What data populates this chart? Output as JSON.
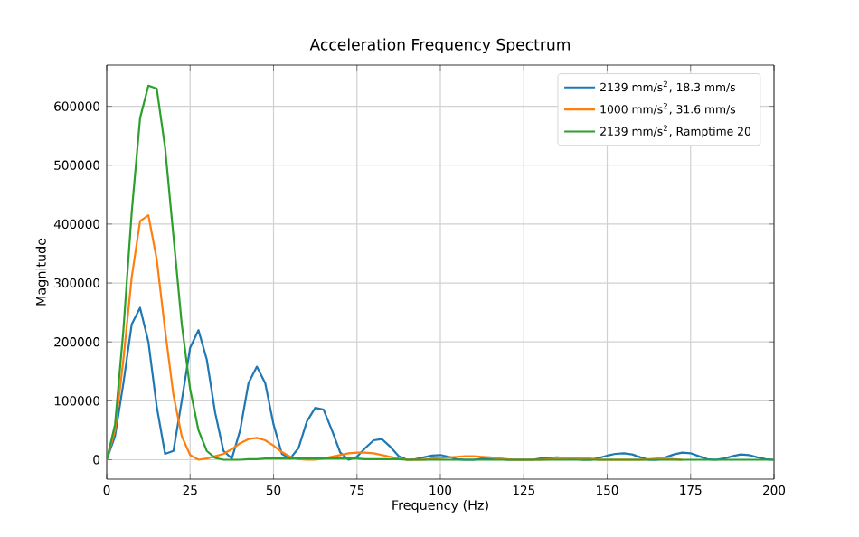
{
  "chart_data": {
    "type": "line",
    "title": "Acceleration Frequency Spectrum",
    "xlabel": "Frequency (Hz)",
    "ylabel": "Magnitude",
    "x": [
      0,
      2.5,
      5,
      7.5,
      10,
      12.5,
      15,
      17.5,
      20,
      22.5,
      25,
      27.5,
      30,
      32.5,
      35,
      37.5,
      40,
      42.5,
      45,
      47.5,
      50,
      52.5,
      55,
      57.5,
      60,
      62.5,
      65,
      67.5,
      70,
      72.5,
      75,
      77.5,
      80,
      82.5,
      85,
      87.5,
      90,
      92.5,
      95,
      97.5,
      100,
      102.5,
      105,
      107.5,
      110,
      112.5,
      115,
      117.5,
      120,
      122.5,
      125,
      127.5,
      130,
      132.5,
      135,
      137.5,
      140,
      142.5,
      145,
      147.5,
      150,
      152.5,
      155,
      157.5,
      160,
      162.5,
      165,
      167.5,
      170,
      172.5,
      175,
      177.5,
      180,
      182.5,
      185,
      187.5,
      190,
      192.5,
      195,
      197.5,
      200
    ],
    "series": [
      {
        "name": "2139 mm/s$^{2}$, 18.3 mm/s",
        "color": "#1f77b4",
        "values": [
          0,
          40000,
          130000,
          230000,
          258000,
          200000,
          90000,
          10000,
          15000,
          100000,
          190000,
          220000,
          170000,
          80000,
          15000,
          2000,
          50000,
          130000,
          158000,
          130000,
          60000,
          10000,
          2000,
          20000,
          65000,
          88000,
          85000,
          50000,
          12000,
          0,
          5000,
          20000,
          33000,
          35000,
          22000,
          6000,
          0,
          1000,
          4000,
          7000,
          8000,
          5000,
          1000,
          0,
          0,
          2000,
          2000,
          2000,
          0,
          0,
          0,
          0,
          2000,
          3000,
          4000,
          3000,
          2000,
          0,
          0,
          3000,
          7000,
          10000,
          11000,
          9000,
          4000,
          0,
          0,
          4000,
          9000,
          12000,
          11000,
          6000,
          1000,
          0,
          2000,
          6000,
          9000,
          8000,
          4000,
          1000,
          0
        ]
      },
      {
        "name": "1000 mm/s$^{2}$, 31.6 mm/s",
        "color": "#ff7f0e",
        "values": [
          0,
          50000,
          170000,
          310000,
          405000,
          415000,
          340000,
          220000,
          110000,
          40000,
          8000,
          0,
          2000,
          6000,
          10000,
          18000,
          28000,
          35000,
          37000,
          33000,
          24000,
          13000,
          5000,
          1000,
          0,
          0,
          2000,
          5000,
          8000,
          11000,
          12000,
          12000,
          11000,
          8000,
          5000,
          2000,
          0,
          0,
          0,
          2000,
          3000,
          4000,
          5000,
          6000,
          6000,
          5000,
          4000,
          2000,
          1000,
          0,
          0,
          0,
          0,
          1000,
          2000,
          3000,
          3000,
          2000,
          2000,
          0,
          0,
          0,
          0,
          0,
          0,
          1000,
          2000,
          2000,
          1000,
          0,
          null,
          null,
          null,
          null,
          null,
          null,
          null,
          null,
          null,
          null,
          null
        ]
      },
      {
        "name": "2139 mm/s$^{2}$, Ramptime 20",
        "color": "#2ca02c",
        "values": [
          0,
          60000,
          220000,
          420000,
          580000,
          635000,
          630000,
          530000,
          380000,
          230000,
          120000,
          50000,
          15000,
          3000,
          0,
          0,
          0,
          1000,
          1000,
          2000,
          2000,
          2000,
          2000,
          2000,
          2000,
          2000,
          2000,
          2000,
          2000,
          2000,
          2000,
          1000,
          1000,
          1000,
          1000,
          1000,
          0,
          0,
          0,
          0,
          0,
          0,
          0,
          0,
          0,
          0,
          0,
          0,
          0,
          0,
          0,
          0,
          0,
          0,
          0,
          0,
          0,
          0,
          0,
          0,
          0,
          0,
          0,
          0,
          0,
          0,
          0,
          0,
          0,
          0,
          0,
          0,
          0,
          0,
          0,
          0,
          0,
          0,
          0,
          0,
          0
        ]
      }
    ],
    "xlim": [
      0,
      200
    ],
    "ylim": [
      -33000,
      670000
    ],
    "xticks": [
      0,
      25,
      50,
      75,
      100,
      125,
      150,
      175,
      200
    ],
    "yticks": [
      0,
      100000,
      200000,
      300000,
      400000,
      500000,
      600000
    ],
    "grid": true,
    "legend": "top right",
    "marker": "none",
    "line_style": "solid"
  }
}
